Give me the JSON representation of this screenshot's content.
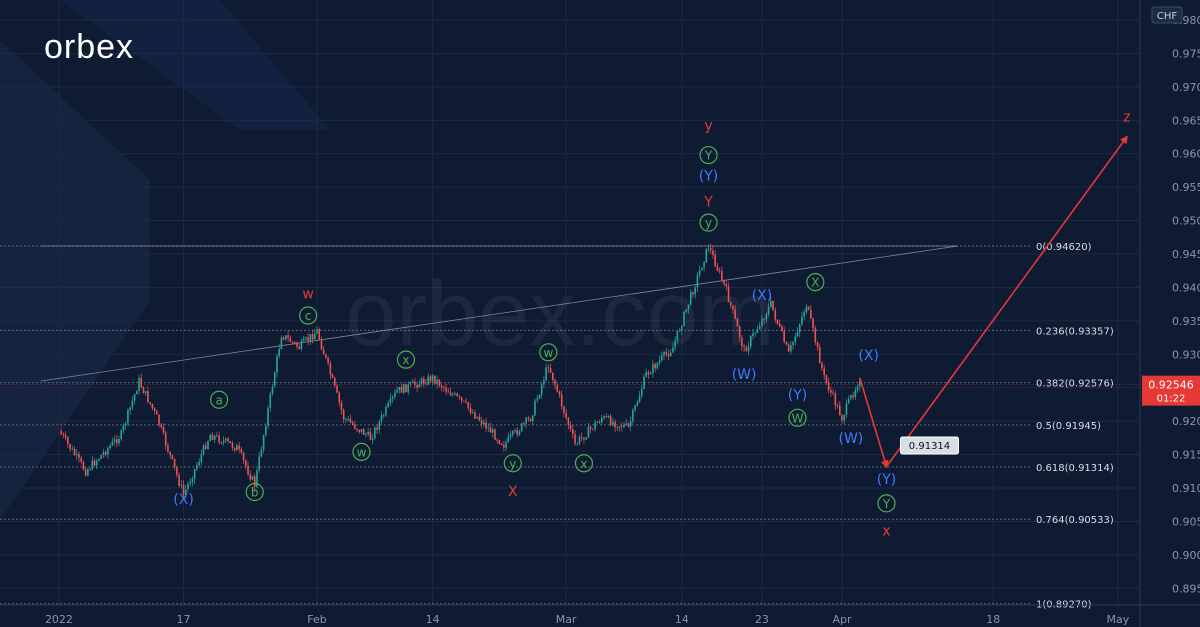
{
  "brand": {
    "logo_text": "orbex",
    "watermark_text": "orbex.com"
  },
  "colors": {
    "background": "#0f1b33",
    "candle_up": "#26a69a",
    "candle_down": "#ef5350",
    "grid": "#1c2a45",
    "axis_text": "#8c95a8",
    "label_green": "#4caf50",
    "label_blue": "#3d7bff",
    "label_red": "#e53935",
    "arrow": "#e53935",
    "price_badge": "#e53935"
  },
  "chart_data": {
    "type": "candlestick",
    "currency": "CHF",
    "ylim": [
      0.89,
      0.98
    ],
    "y_ticks": [
      "0.89500",
      "0.90000",
      "0.90500",
      "0.91000",
      "0.91500",
      "0.92000",
      "0.92500",
      "0.93000",
      "0.93500",
      "0.94000",
      "0.94500",
      "0.95000",
      "0.95500",
      "0.96000",
      "0.96500",
      "0.97000",
      "0.97500",
      "0.98000"
    ],
    "x_ticks": [
      {
        "label": "2022",
        "date": "2022-01-03"
      },
      {
        "label": "17",
        "date": "2022-01-17"
      },
      {
        "label": "Feb",
        "date": "2022-02-01"
      },
      {
        "label": "14",
        "date": "2022-02-14"
      },
      {
        "label": "Mar",
        "date": "2022-03-01"
      },
      {
        "label": "14",
        "date": "2022-03-14"
      },
      {
        "label": "23",
        "date": "2022-03-23"
      },
      {
        "label": "Apr",
        "date": "2022-04-01"
      },
      {
        "label": "18",
        "date": "2022-04-18"
      },
      {
        "label": "May",
        "date": "2022-05-02"
      }
    ],
    "current_price": {
      "value": 0.92546,
      "label": "0.92546",
      "timer": "01:22"
    },
    "target_label": {
      "value": 0.91314,
      "label": "0.91314",
      "date": "2022-04-06"
    },
    "fibonacci": [
      {
        "label": "0(0.94620)",
        "value": 0.9462
      },
      {
        "label": "0.236(0.93357)",
        "value": 0.93357
      },
      {
        "label": "0.382(0.92576)",
        "value": 0.92576
      },
      {
        "label": "0.5(0.91945)",
        "value": 0.91945
      },
      {
        "label": "0.618(0.91314)",
        "value": 0.91314
      },
      {
        "label": "0.764(0.90533)",
        "value": 0.90533
      },
      {
        "label": "1(0.89270)",
        "value": 0.8927
      }
    ],
    "price_path": [
      {
        "date": "2022-01-03",
        "value": 0.9185
      },
      {
        "date": "2022-01-06",
        "value": 0.9125
      },
      {
        "date": "2022-01-10",
        "value": 0.918
      },
      {
        "date": "2022-01-12",
        "value": 0.926
      },
      {
        "date": "2022-01-14",
        "value": 0.9205
      },
      {
        "date": "2022-01-17",
        "value": 0.909
      },
      {
        "date": "2022-01-20",
        "value": 0.918
      },
      {
        "date": "2022-01-23",
        "value": 0.916
      },
      {
        "date": "2022-01-25",
        "value": 0.9105
      },
      {
        "date": "2022-01-28",
        "value": 0.933
      },
      {
        "date": "2022-01-30",
        "value": 0.931
      },
      {
        "date": "2022-02-01",
        "value": 0.9335
      },
      {
        "date": "2022-02-04",
        "value": 0.9205
      },
      {
        "date": "2022-02-07",
        "value": 0.9175
      },
      {
        "date": "2022-02-10",
        "value": 0.9245
      },
      {
        "date": "2022-02-14",
        "value": 0.9265
      },
      {
        "date": "2022-02-18",
        "value": 0.922
      },
      {
        "date": "2022-02-22",
        "value": 0.9165
      },
      {
        "date": "2022-02-25",
        "value": 0.9205
      },
      {
        "date": "2022-02-27",
        "value": 0.9285
      },
      {
        "date": "2022-03-02",
        "value": 0.9165
      },
      {
        "date": "2022-03-05",
        "value": 0.9205
      },
      {
        "date": "2022-03-08",
        "value": 0.919
      },
      {
        "date": "2022-03-10",
        "value": 0.927
      },
      {
        "date": "2022-03-13",
        "value": 0.931
      },
      {
        "date": "2022-03-16",
        "value": 0.9425
      },
      {
        "date": "2022-03-17",
        "value": 0.9462
      },
      {
        "date": "2022-03-19",
        "value": 0.9395
      },
      {
        "date": "2022-03-21",
        "value": 0.9305
      },
      {
        "date": "2022-03-24",
        "value": 0.9375
      },
      {
        "date": "2022-03-26",
        "value": 0.93
      },
      {
        "date": "2022-03-28",
        "value": 0.9375
      },
      {
        "date": "2022-03-30",
        "value": 0.9265
      },
      {
        "date": "2022-04-01",
        "value": 0.9205
      },
      {
        "date": "2022-04-03",
        "value": 0.9265
      },
      {
        "date": "2022-04-03",
        "value": 0.92546
      }
    ],
    "forecast_arrows": [
      {
        "from": {
          "date": "2022-04-03",
          "value": 0.9265
        },
        "to": {
          "date": "2022-04-06",
          "value": 0.9132
        }
      },
      {
        "from": {
          "date": "2022-04-06",
          "value": 0.9132
        },
        "to": {
          "date": "2022-05-03",
          "value": 0.9625
        }
      }
    ],
    "trendlines": [
      {
        "from": {
          "date": "2022-01-01",
          "value": 0.926
        },
        "to": {
          "date": "2022-04-14",
          "value": 0.9462
        }
      },
      {
        "from": {
          "date": "2022-01-01",
          "value": 0.9462
        },
        "to": {
          "date": "2022-04-14",
          "value": 0.9462
        }
      }
    ],
    "wave_labels": [
      {
        "text": "(X)",
        "color": "blue",
        "circled": false,
        "date": "2022-01-17",
        "value": 0.9083
      },
      {
        "text": "a",
        "color": "green",
        "circled": true,
        "date": "2022-01-21",
        "value": 0.9232
      },
      {
        "text": "b",
        "color": "green",
        "circled": true,
        "date": "2022-01-25",
        "value": 0.9094
      },
      {
        "text": "w",
        "color": "red",
        "circled": false,
        "date": "2022-01-31",
        "value": 0.939
      },
      {
        "text": "c",
        "color": "green",
        "circled": true,
        "date": "2022-01-31",
        "value": 0.9358
      },
      {
        "text": "w",
        "color": "green",
        "circled": true,
        "date": "2022-02-06",
        "value": 0.9154
      },
      {
        "text": "x",
        "color": "green",
        "circled": true,
        "date": "2022-02-11",
        "value": 0.9292
      },
      {
        "text": "y",
        "color": "green",
        "circled": true,
        "date": "2022-02-23",
        "value": 0.9137
      },
      {
        "text": "X",
        "color": "red",
        "circled": false,
        "date": "2022-02-23",
        "value": 0.9095
      },
      {
        "text": "w",
        "color": "green",
        "circled": true,
        "date": "2022-02-27",
        "value": 0.9303
      },
      {
        "text": "x",
        "color": "green",
        "circled": true,
        "date": "2022-03-03",
        "value": 0.9137
      },
      {
        "text": "y",
        "color": "red",
        "circled": false,
        "date": "2022-03-17",
        "value": 0.9642
      },
      {
        "text": "Y",
        "color": "green",
        "circled": true,
        "date": "2022-03-17",
        "value": 0.9598
      },
      {
        "text": "(Y)",
        "color": "blue",
        "circled": false,
        "date": "2022-03-17",
        "value": 0.9567
      },
      {
        "text": "Y",
        "color": "red",
        "circled": false,
        "date": "2022-03-17",
        "value": 0.9528
      },
      {
        "text": "y",
        "color": "green",
        "circled": true,
        "date": "2022-03-17",
        "value": 0.9497
      },
      {
        "text": "(X)",
        "color": "blue",
        "circled": false,
        "date": "2022-03-23",
        "value": 0.9388
      },
      {
        "text": "(W)",
        "color": "blue",
        "circled": false,
        "date": "2022-03-21",
        "value": 0.927
      },
      {
        "text": "X",
        "color": "green",
        "circled": true,
        "date": "2022-03-29",
        "value": 0.9408
      },
      {
        "text": "(Y)",
        "color": "blue",
        "circled": false,
        "date": "2022-03-27",
        "value": 0.9239
      },
      {
        "text": "W",
        "color": "green",
        "circled": true,
        "date": "2022-03-27",
        "value": 0.9205
      },
      {
        "text": "(X)",
        "color": "blue",
        "circled": false,
        "date": "2022-04-04",
        "value": 0.9298
      },
      {
        "text": "(W)",
        "color": "blue",
        "circled": false,
        "date": "2022-04-02",
        "value": 0.9174
      },
      {
        "text": "(Y)",
        "color": "blue",
        "circled": false,
        "date": "2022-04-06",
        "value": 0.9113
      },
      {
        "text": "Y",
        "color": "green",
        "circled": true,
        "date": "2022-04-06",
        "value": 0.9077
      },
      {
        "text": "x",
        "color": "red",
        "circled": false,
        "date": "2022-04-06",
        "value": 0.9036
      },
      {
        "text": "z",
        "color": "red",
        "circled": false,
        "date": "2022-05-03",
        "value": 0.9655
      }
    ]
  }
}
